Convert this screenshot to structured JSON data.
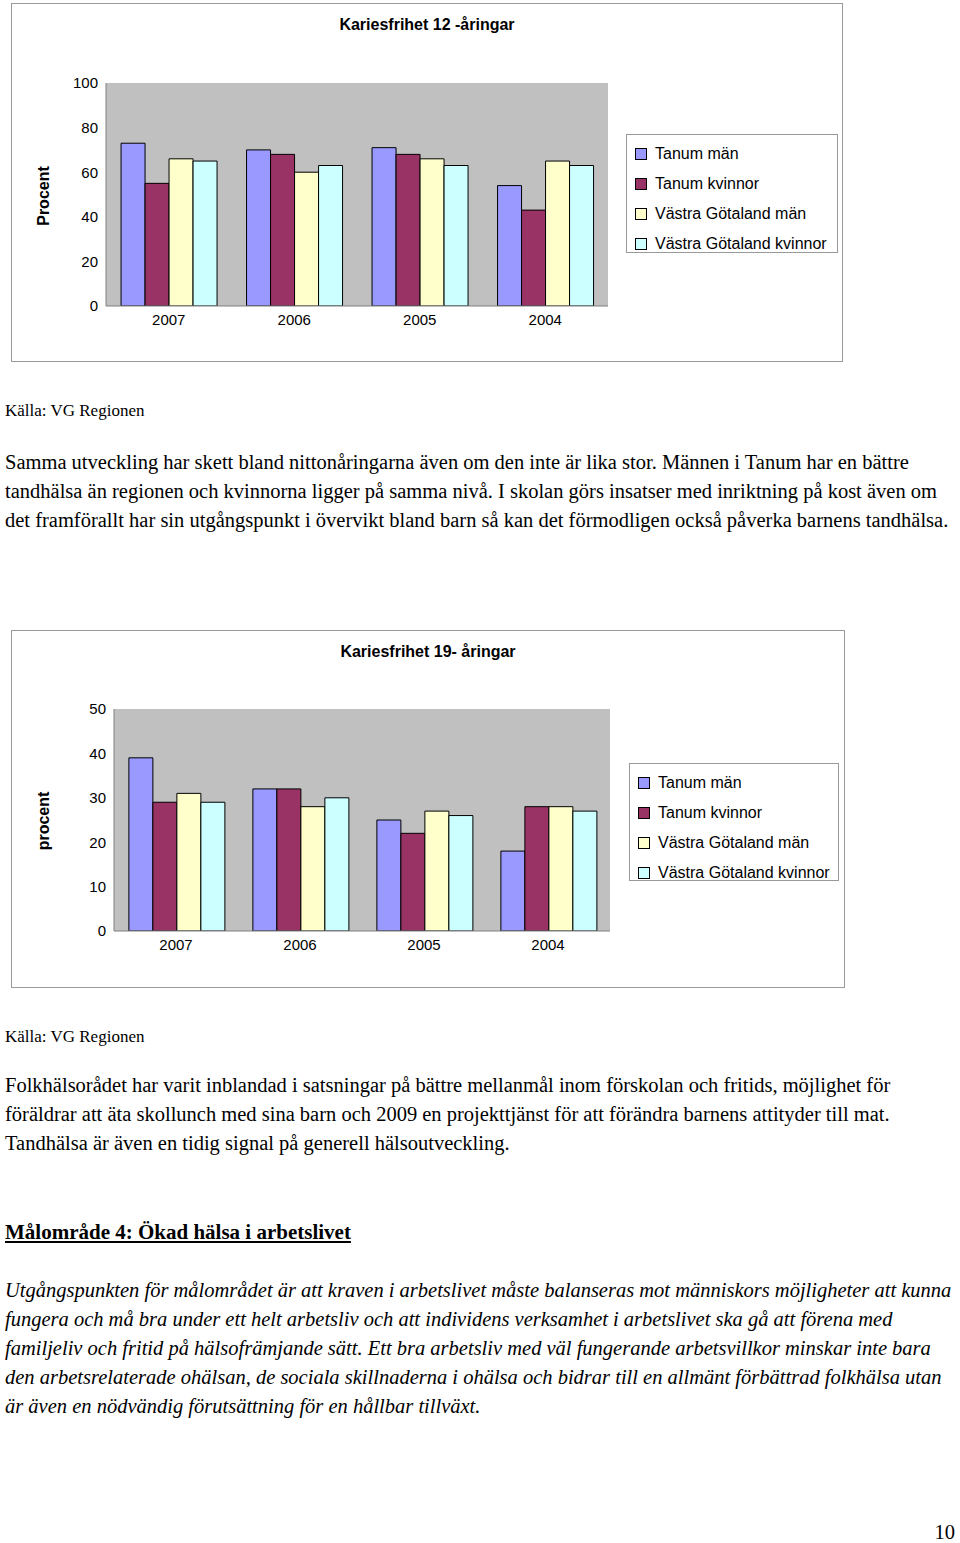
{
  "chart_data": [
    {
      "type": "bar",
      "title": "Kariesfrihet 12 -åringar",
      "y_label": "Procent",
      "categories": [
        "2007",
        "2006",
        "2005",
        "2004"
      ],
      "ylim": [
        0,
        100
      ],
      "yticks": [
        0,
        20,
        40,
        60,
        80,
        100
      ],
      "grid": false,
      "legend": "right",
      "series": [
        {
          "name": "Tanum män",
          "color": "#9999ff",
          "values": [
            73,
            70,
            71,
            54
          ]
        },
        {
          "name": "Tanum kvinnor",
          "color": "#993366",
          "values": [
            55,
            68,
            68,
            43
          ]
        },
        {
          "name": "Västra Götaland män",
          "color": "#ffffcc",
          "values": [
            66,
            60,
            66,
            65
          ]
        },
        {
          "name": "Västra Götaland kvinnor",
          "color": "#ccffff",
          "values": [
            65,
            63,
            63,
            63
          ]
        }
      ]
    },
    {
      "type": "bar",
      "title": "Kariesfrihet 19- åringar",
      "y_label": "procent",
      "categories": [
        "2007",
        "2006",
        "2005",
        "2004"
      ],
      "ylim": [
        0,
        50
      ],
      "yticks": [
        0,
        10,
        20,
        30,
        40,
        50
      ],
      "grid": false,
      "legend": "right",
      "series": [
        {
          "name": "Tanum män",
          "color": "#9999ff",
          "values": [
            39,
            32,
            25,
            18
          ]
        },
        {
          "name": "Tanum kvinnor",
          "color": "#993366",
          "values": [
            29,
            32,
            22,
            28
          ]
        },
        {
          "name": "Västra Götaland män",
          "color": "#ffffcc",
          "values": [
            31,
            28,
            27,
            28
          ]
        },
        {
          "name": "Västra Götaland kvinnor",
          "color": "#ccffff",
          "values": [
            29,
            30,
            26,
            27
          ]
        }
      ]
    }
  ],
  "document": {
    "sources": [
      "Källa: VG Regionen",
      "Källa: VG Regionen"
    ],
    "paragraphs": [
      "Samma utveckling har skett bland nittonåringarna även om den inte är lika stor. Männen i Tanum har en bättre tandhälsa än regionen och kvinnorna ligger på samma nivå. I skolan görs insatser med inriktning på kost även om det framförallt har sin utgångspunkt i övervikt bland barn så kan det förmodligen också påverka barnens tandhälsa.",
      "Folkhälsorådet har varit inblandad i satsningar på bättre mellanmål inom förskolan och fritids, möjlighet för föräldrar att äta skollunch med sina barn och 2009 en projekttjänst för att förändra barnens attityder till mat. Tandhälsa är även en tidig signal på generell hälsoutveckling."
    ],
    "heading": "Målområde 4: Ökad hälsa i arbetslivet",
    "intro": "Utgångspunkten för målområdet är att kraven i arbetslivet måste balanseras mot människors möjligheter att kunna fungera och må bra under ett helt arbetsliv och att individens verksamhet i arbetslivet ska gå att förena med familjeliv och fritid på hälsofrämjande sätt. Ett bra arbetsliv med väl fungerande arbetsvillkor minskar inte bara den arbetsrelaterade ohälsan, de sociala skillnaderna i ohälsa och bidrar till en allmänt förbättrad folkhälsa utan är även en nödvändig förutsättning för en hållbar tillväxt.",
    "page_number": "10"
  }
}
